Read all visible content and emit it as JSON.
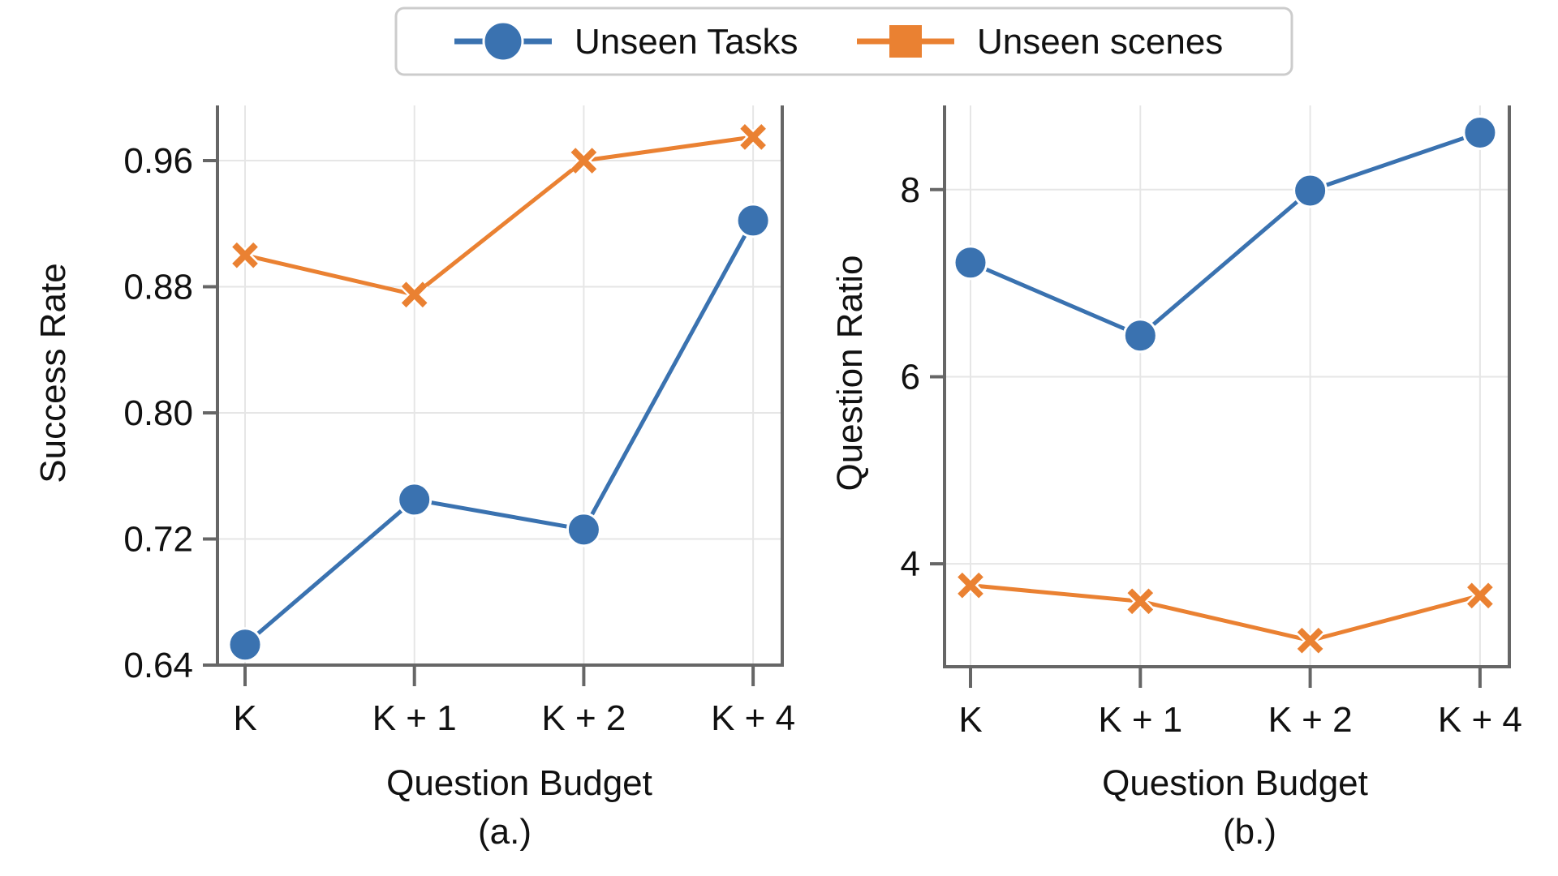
{
  "colors": {
    "unseen_tasks": "#3a72b0",
    "unseen_scenes": "#ea8132",
    "grid": "#e6e6e6",
    "axis": "#666666"
  },
  "legend": {
    "items": [
      {
        "label": "Unseen Tasks",
        "color": "#3a72b0",
        "marker": "circle"
      },
      {
        "label": "Unseen scenes",
        "color": "#ea8132",
        "marker": "square"
      }
    ]
  },
  "chart_data": [
    {
      "type": "line",
      "caption": "(a.)",
      "categories": [
        "K",
        "K + 1",
        "K + 2",
        "K + 4"
      ],
      "xlabel": "Question Budget",
      "ylabel": "Success Rate",
      "ylim": [
        0.64,
        0.995
      ],
      "yticks": [
        0.64,
        0.72,
        0.8,
        0.88,
        0.96
      ],
      "ytick_labels": [
        "0.64",
        "0.72",
        "0.80",
        "0.88",
        "0.96"
      ],
      "grid": true,
      "legend_position": "top-center",
      "series": [
        {
          "name": "Unseen Tasks",
          "marker": "circle",
          "values": [
            0.653,
            0.745,
            0.726,
            0.922
          ]
        },
        {
          "name": "Unseen scenes",
          "marker": "x",
          "values": [
            0.9,
            0.875,
            0.96,
            0.975
          ]
        }
      ]
    },
    {
      "type": "line",
      "caption": "(b.)",
      "categories": [
        "K",
        "K + 1",
        "K + 2",
        "K + 4"
      ],
      "xlabel": "Question Budget",
      "ylabel": "Question Ratio",
      "ylim": [
        2.9,
        8.9
      ],
      "yticks": [
        4,
        6,
        8
      ],
      "ytick_labels": [
        "4",
        "6",
        "8"
      ],
      "grid": true,
      "series": [
        {
          "name": "Unseen Tasks",
          "marker": "circle",
          "values": [
            7.22,
            6.44,
            7.99,
            8.61
          ]
        },
        {
          "name": "Unseen scenes",
          "marker": "x",
          "values": [
            3.77,
            3.6,
            3.18,
            3.66
          ]
        }
      ]
    }
  ]
}
